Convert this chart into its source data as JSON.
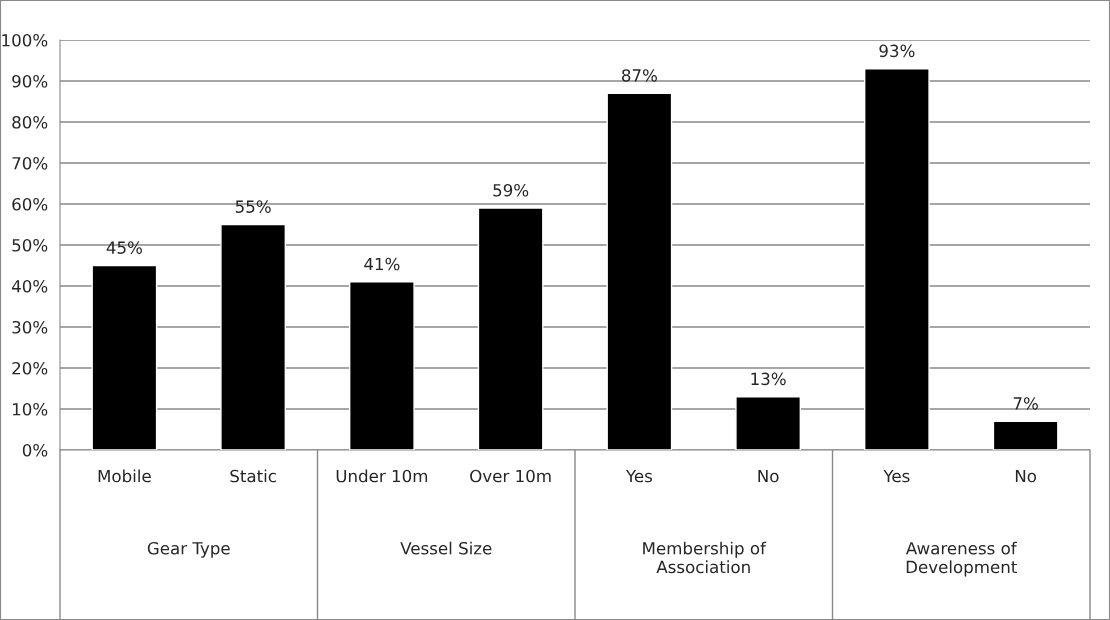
{
  "chart_data": {
    "type": "bar",
    "categories": [
      "Mobile",
      "Static",
      "Under 10m",
      "Over 10m",
      "Yes",
      "No",
      "Yes",
      "No"
    ],
    "values": [
      45,
      55,
      41,
      59,
      87,
      13,
      93,
      7
    ],
    "value_labels": [
      "45%",
      "55%",
      "41%",
      "59%",
      "87%",
      "13%",
      "93%",
      "7%"
    ],
    "color": "#000000",
    "annotations": [
      "Gear Type",
      "Vessel Size",
      "Membership of Association",
      "Awareness of Development"
    ],
    "ylim": [
      0,
      100
    ],
    "yticks": [
      {
        "value": 0,
        "label": "0%"
      },
      {
        "value": 10,
        "label": "10%"
      },
      {
        "value": 20,
        "label": "20%"
      },
      {
        "value": 30,
        "label": "30%"
      },
      {
        "value": 40,
        "label": "40%"
      },
      {
        "value": 50,
        "label": "50%"
      },
      {
        "value": 60,
        "label": "60%"
      },
      {
        "value": 70,
        "label": "70%"
      },
      {
        "value": 80,
        "label": "80%"
      },
      {
        "value": 90,
        "label": "90%"
      },
      {
        "value": 100,
        "label": "100%"
      }
    ],
    "grid": "y",
    "legend": false
  }
}
